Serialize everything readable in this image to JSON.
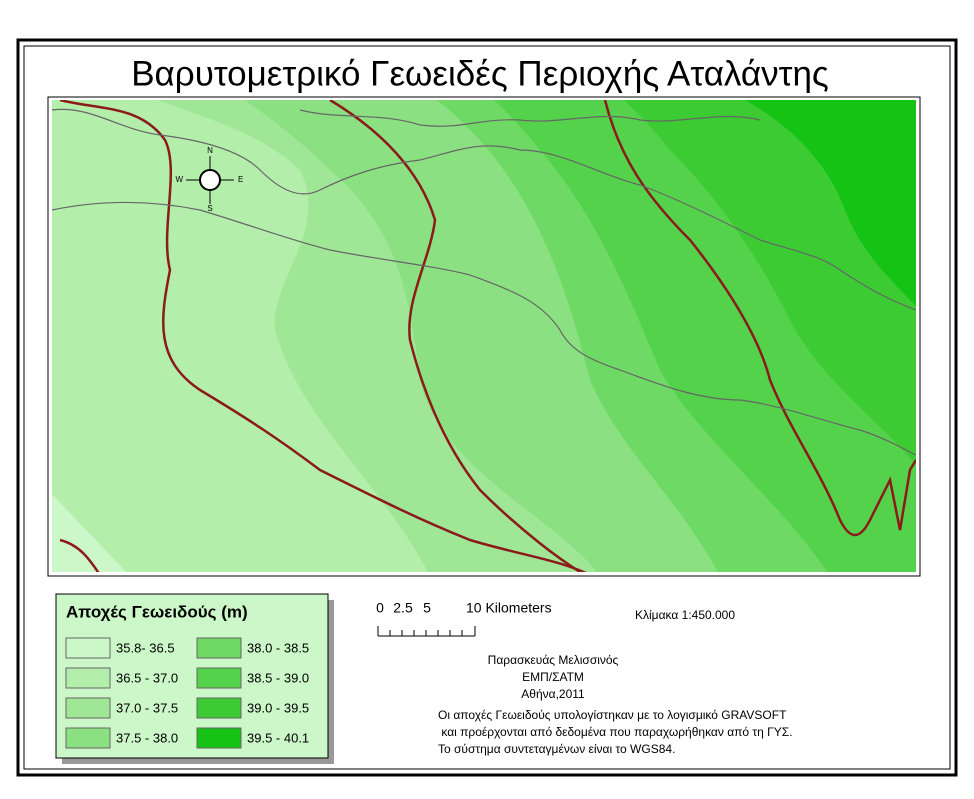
{
  "title": "Βαρυτομετρικό Γεωειδές Περιοχής  Αταλάντης",
  "compass": {
    "north": "N",
    "east": "E",
    "south": "S",
    "west": "W"
  },
  "legend": {
    "title": "Αποχές Γεωειδούς (m)",
    "items": [
      {
        "label": "35.8- 36.5",
        "color": "#ccf7c8"
      },
      {
        "label": "36.5 - 37.0",
        "color": "#b3eeab"
      },
      {
        "label": "37.0 - 37.5",
        "color": "#9fe696"
      },
      {
        "label": "37.5 - 38.0",
        "color": "#8be182"
      },
      {
        "label": "38.0 - 38.5",
        "color": "#6ed964"
      },
      {
        "label": "38.5 - 39.0",
        "color": "#55d24b"
      },
      {
        "label": "39.0 - 39.5",
        "color": "#3ccb33"
      },
      {
        "label": "39.5 - 40.1",
        "color": "#14c313"
      }
    ]
  },
  "scale_bar": {
    "labels": [
      "0",
      "2.5",
      "5",
      "10 Kilometers"
    ]
  },
  "scale": "Κλίμακα 1:450.000",
  "credits": [
    "Παρασκευάς Μελισσινός",
    "ΕΜΠ/ΣΑΤΜ",
    "Αθήνα,2011"
  ],
  "notes": [
    "Οι αποχές Γεωειδούς υπολογίστηκαν με το λογισμικό GRAVSOFT",
    " και προέρχονται από δεδομένα που παραχωρήθηκαν από τη ΓΥΣ.",
    "Το σύστημα συντεταγμένων είναι το WGS84."
  ]
}
